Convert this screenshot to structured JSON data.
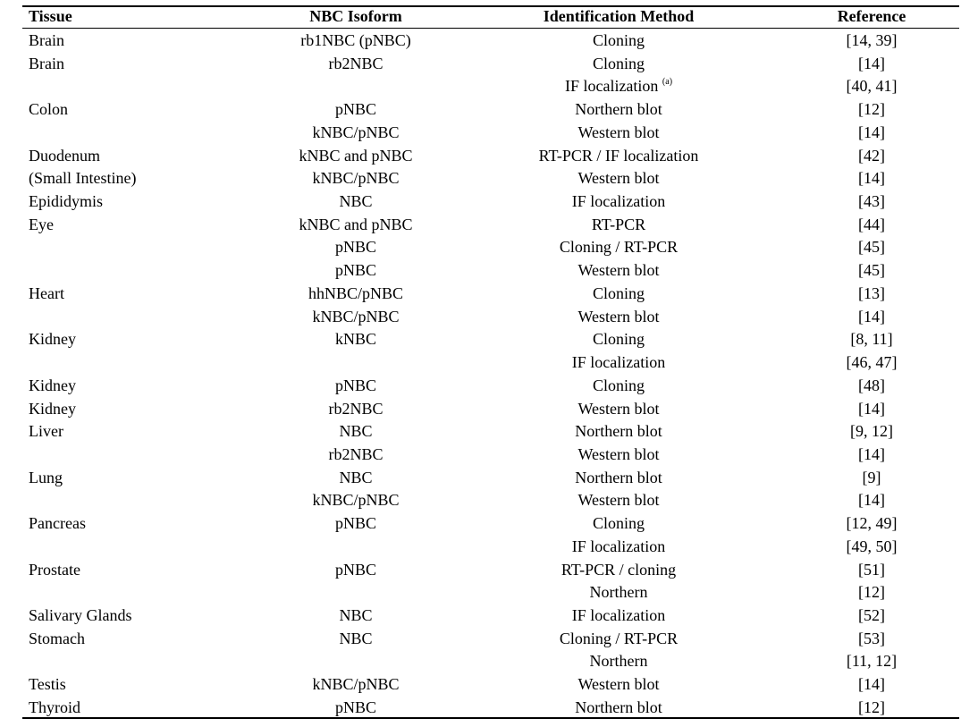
{
  "table": {
    "headers": [
      "Tissue",
      "NBC Isoform",
      "Identification Method",
      "Reference"
    ],
    "rows": [
      {
        "tissue": "Brain",
        "isoform": "rb1NBC (pNBC)",
        "method": "Cloning",
        "note": "",
        "ref": "[14, 39]"
      },
      {
        "tissue": "Brain",
        "isoform": "rb2NBC",
        "method": "Cloning",
        "note": "",
        "ref": "[14]"
      },
      {
        "tissue": "",
        "isoform": "",
        "method": "IF localization",
        "note": "(a)",
        "ref": "[40, 41]"
      },
      {
        "tissue": "Colon",
        "isoform": "pNBC",
        "method": "Northern blot",
        "note": "",
        "ref": "[12]"
      },
      {
        "tissue": "",
        "isoform": "kNBC/pNBC",
        "method": "Western blot",
        "note": "",
        "ref": "[14]"
      },
      {
        "tissue": "Duodenum",
        "isoform": "kNBC and pNBC",
        "method": "RT-PCR / IF localization",
        "note": "",
        "ref": "[42]"
      },
      {
        "tissue": "(Small Intestine)",
        "isoform": "kNBC/pNBC",
        "method": "Western blot",
        "note": "",
        "ref": "[14]"
      },
      {
        "tissue": "Epididymis",
        "isoform": "NBC",
        "method": "IF localization",
        "note": "",
        "ref": "[43]"
      },
      {
        "tissue": "Eye",
        "isoform": "kNBC and pNBC",
        "method": "RT-PCR",
        "note": "",
        "ref": "[44]"
      },
      {
        "tissue": "",
        "isoform": "pNBC",
        "method": "Cloning / RT-PCR",
        "note": "",
        "ref": "[45]"
      },
      {
        "tissue": "",
        "isoform": "pNBC",
        "method": "Western blot",
        "note": "",
        "ref": "[45]"
      },
      {
        "tissue": "Heart",
        "isoform": "hhNBC/pNBC",
        "method": "Cloning",
        "note": "",
        "ref": "[13]"
      },
      {
        "tissue": "",
        "isoform": "kNBC/pNBC",
        "method": "Western blot",
        "note": "",
        "ref": "[14]"
      },
      {
        "tissue": "Kidney",
        "isoform": "kNBC",
        "method": "Cloning",
        "note": "",
        "ref": "[8, 11]"
      },
      {
        "tissue": "",
        "isoform": "",
        "method": "IF localization",
        "note": "",
        "ref": "[46, 47]"
      },
      {
        "tissue": "Kidney",
        "isoform": "pNBC",
        "method": "Cloning",
        "note": "",
        "ref": "[48]"
      },
      {
        "tissue": "Kidney",
        "isoform": "rb2NBC",
        "method": "Western blot",
        "note": "",
        "ref": "[14]"
      },
      {
        "tissue": "Liver",
        "isoform": "NBC",
        "method": "Northern blot",
        "note": "",
        "ref": "[9, 12]"
      },
      {
        "tissue": "",
        "isoform": "rb2NBC",
        "method": "Western blot",
        "note": "",
        "ref": "[14]"
      },
      {
        "tissue": "Lung",
        "isoform": "NBC",
        "method": "Northern blot",
        "note": "",
        "ref": "[9]"
      },
      {
        "tissue": "",
        "isoform": "kNBC/pNBC",
        "method": "Western blot",
        "note": "",
        "ref": "[14]"
      },
      {
        "tissue": "Pancreas",
        "isoform": "pNBC",
        "method": "Cloning",
        "note": "",
        "ref": "[12, 49]"
      },
      {
        "tissue": "",
        "isoform": "",
        "method": "IF localization",
        "note": "",
        "ref": "[49, 50]"
      },
      {
        "tissue": "Prostate",
        "isoform": "pNBC",
        "method": "RT-PCR / cloning",
        "note": "",
        "ref": "[51]"
      },
      {
        "tissue": "",
        "isoform": "",
        "method": "Northern",
        "note": "",
        "ref": "[12]"
      },
      {
        "tissue": "Salivary Glands",
        "isoform": "NBC",
        "method": "IF localization",
        "note": "",
        "ref": "[52]"
      },
      {
        "tissue": "Stomach",
        "isoform": "NBC",
        "method": "Cloning / RT-PCR",
        "note": "",
        "ref": "[53]"
      },
      {
        "tissue": "",
        "isoform": "",
        "method": "Northern",
        "note": "",
        "ref": "[11, 12]"
      },
      {
        "tissue": "Testis",
        "isoform": "kNBC/pNBC",
        "method": "Western blot",
        "note": "",
        "ref": "[14]"
      },
      {
        "tissue": "Thyroid",
        "isoform": "pNBC",
        "method": "Northern blot",
        "note": "",
        "ref": "[12]"
      }
    ]
  }
}
